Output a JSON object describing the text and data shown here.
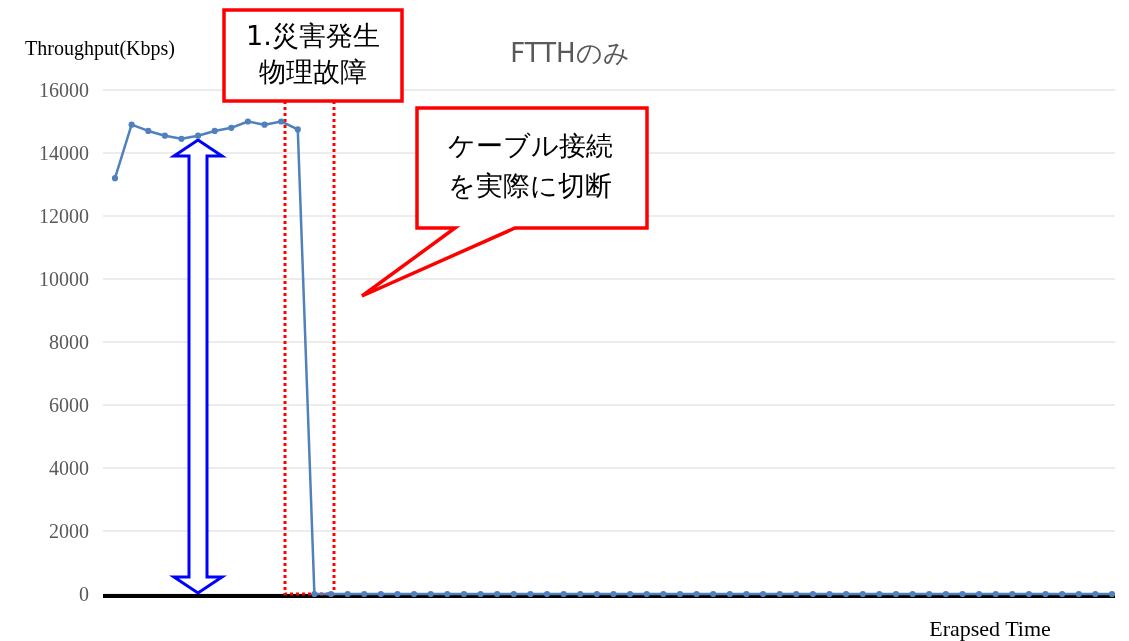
{
  "chart_data": {
    "type": "line",
    "title": "FTTHのみ",
    "ylabel": "Throughput(Kbps)",
    "xlabel": "Erapsed Time",
    "categories": [
      null,
      null,
      null,
      null,
      null,
      null,
      null,
      null,
      null,
      null,
      null,
      null,
      null,
      null,
      null,
      null,
      null,
      null,
      null,
      null,
      null,
      null,
      null,
      null,
      null,
      null,
      null,
      null,
      null,
      null,
      null,
      null,
      null,
      null,
      null,
      null,
      null,
      null,
      null,
      null,
      null,
      null,
      null,
      null,
      null,
      null,
      null,
      null,
      null,
      null,
      null,
      null,
      null,
      null,
      null,
      null,
      null,
      null,
      null,
      null,
      null
    ],
    "series": [
      {
        "color": "#4f81bd",
        "values": [
          13200,
          14900,
          14700,
          14550,
          14450,
          14550,
          14700,
          14800,
          15000,
          14900,
          15000,
          14750,
          0,
          0,
          0,
          0,
          0,
          0,
          0,
          0,
          0,
          0,
          0,
          0,
          0,
          0,
          0,
          0,
          0,
          0,
          0,
          0,
          0,
          0,
          0,
          0,
          0,
          0,
          0,
          0,
          0,
          0,
          0,
          0,
          0,
          0,
          0,
          0,
          0,
          0,
          0,
          0,
          0,
          0,
          0,
          0,
          0,
          0,
          0,
          0,
          0
        ]
      }
    ],
    "ylim": [
      0,
      16000
    ],
    "yticks": [
      0,
      2000,
      4000,
      6000,
      8000,
      10000,
      12000,
      14000,
      16000
    ],
    "grid": "y",
    "marker": "circle",
    "line_style": "solid",
    "tick_labels": "y",
    "annotations": [
      "1.災害発生物理故障",
      "ケーブル接続を実際に切断"
    ]
  }
}
